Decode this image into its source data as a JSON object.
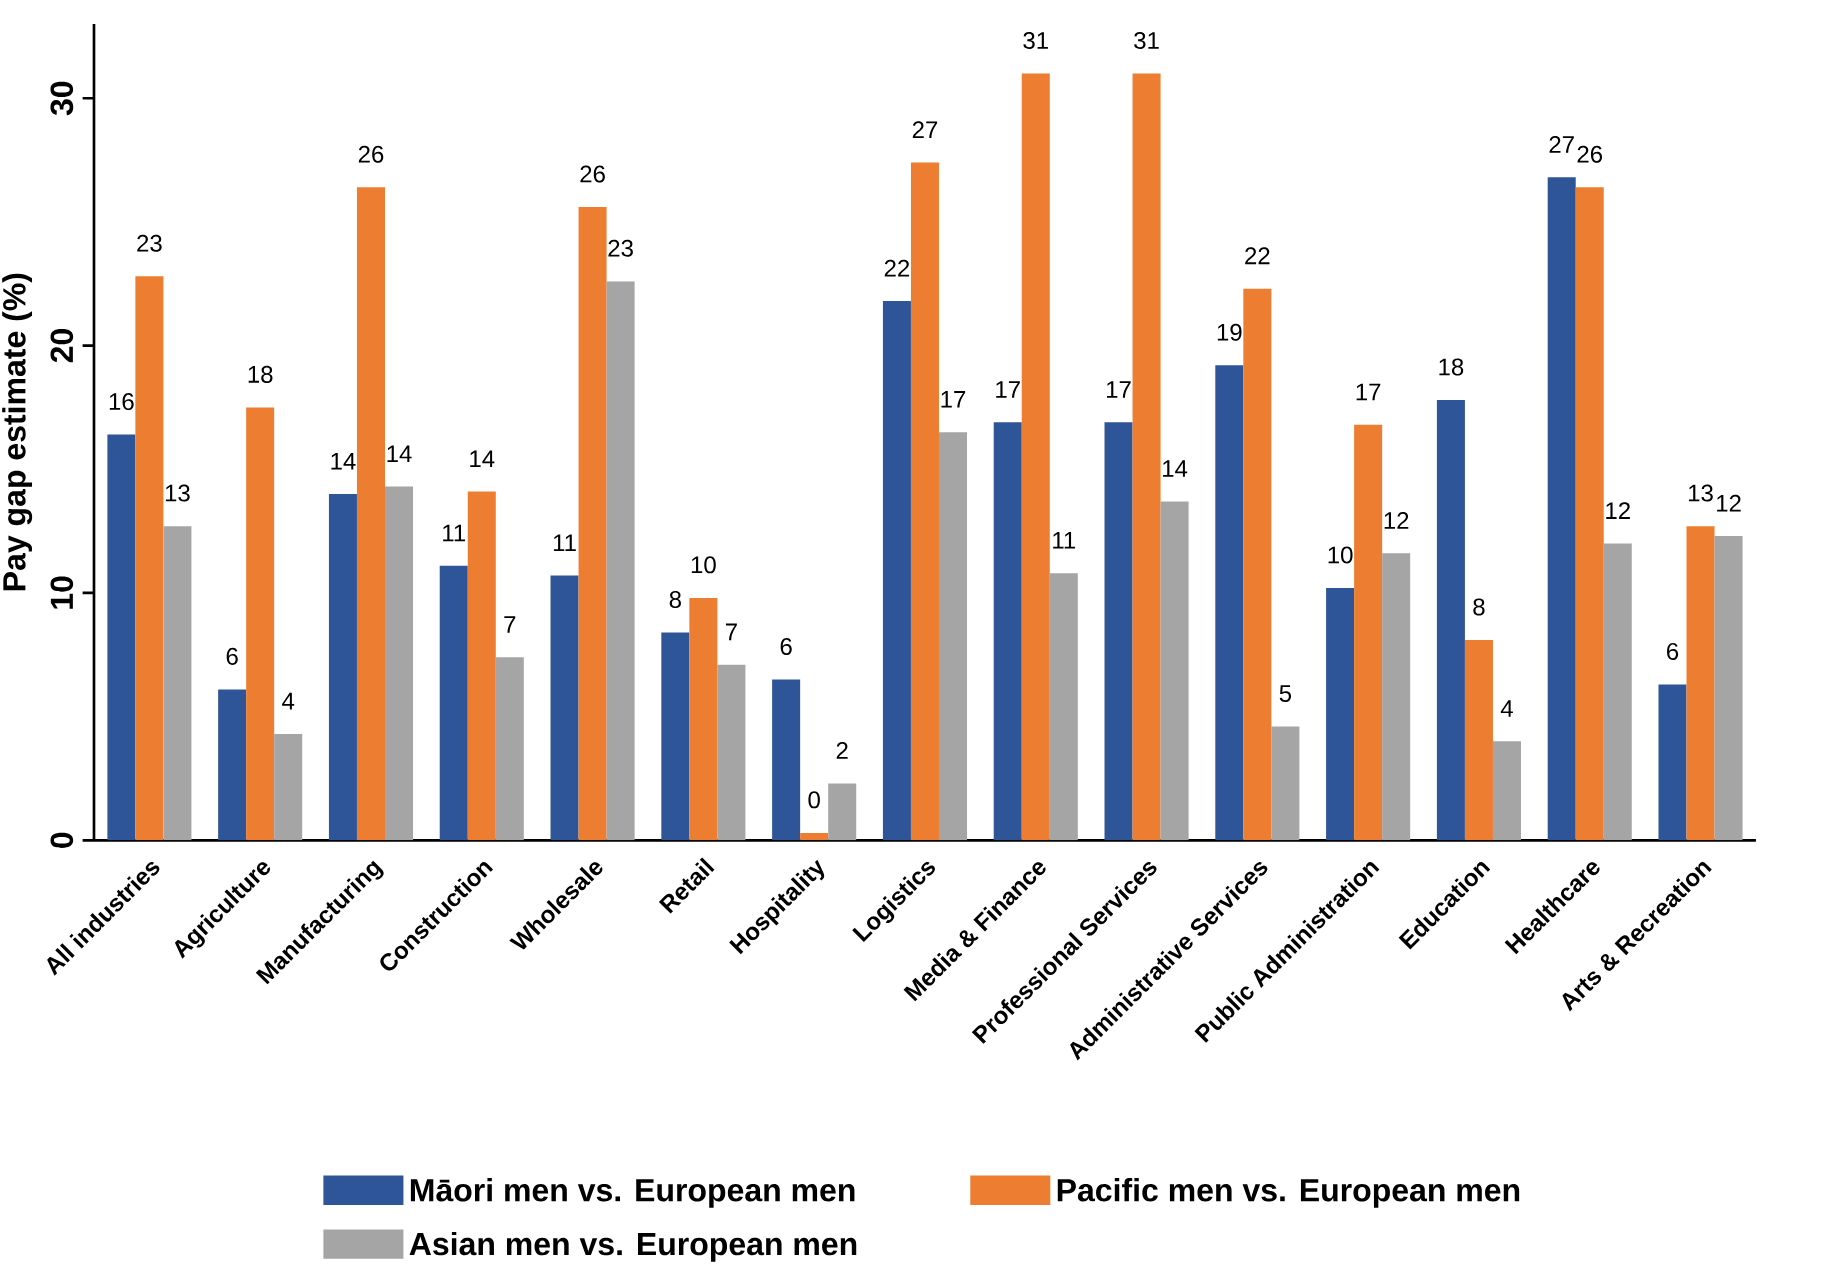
{
  "chart_data": {
    "type": "bar",
    "ylabel": "Pay gap estimate (%)",
    "categories": [
      "All industries",
      "Agriculture",
      "Manufacturing",
      "Construction",
      "Wholesale",
      "Retail",
      "Hospitality",
      "Logistics",
      "Media & Finance",
      "Professional Services",
      "Administrative Services",
      "Public Administration",
      "Education",
      "Healthcare",
      "Arts & Recreation"
    ],
    "series": [
      {
        "name": "Māori men vs. European men",
        "color": "#2e5597",
        "values": [
          16.4,
          6.1,
          14.0,
          11.1,
          10.7,
          8.4,
          6.5,
          21.8,
          16.9,
          16.9,
          19.2,
          10.2,
          17.8,
          26.8,
          6.3
        ],
        "value_labels": [
          "16",
          "6",
          "14",
          "11",
          "11",
          "8",
          "6",
          "22",
          "17",
          "17",
          "19",
          "10",
          "18",
          "27",
          "6"
        ]
      },
      {
        "name": "Pacific men vs. European men",
        "color": "#ed7d31",
        "values": [
          22.8,
          17.5,
          26.4,
          14.1,
          25.6,
          9.8,
          0.3,
          27.4,
          31.0,
          31.0,
          22.3,
          16.8,
          8.1,
          26.4,
          12.7
        ],
        "value_labels": [
          "23",
          "18",
          "26",
          "14",
          "26",
          "10",
          "0",
          "27",
          "31",
          "31",
          "22",
          "17",
          "8",
          "26",
          "13"
        ]
      },
      {
        "name": "Asian men vs. European men",
        "color": "#a5a5a5",
        "values": [
          12.7,
          4.3,
          14.3,
          7.4,
          22.6,
          7.1,
          2.3,
          16.5,
          10.8,
          13.7,
          4.6,
          11.6,
          4.0,
          12.0,
          12.3
        ],
        "value_labels": [
          "13",
          "4",
          "14",
          "7",
          "23",
          "7",
          "2",
          "17",
          "11",
          "14",
          "5",
          "12",
          "4",
          "12",
          "12"
        ]
      }
    ],
    "ylim": [
      0,
      33
    ],
    "yticks": [
      0,
      10,
      20,
      30
    ],
    "grid": false,
    "legend": "bottom"
  }
}
